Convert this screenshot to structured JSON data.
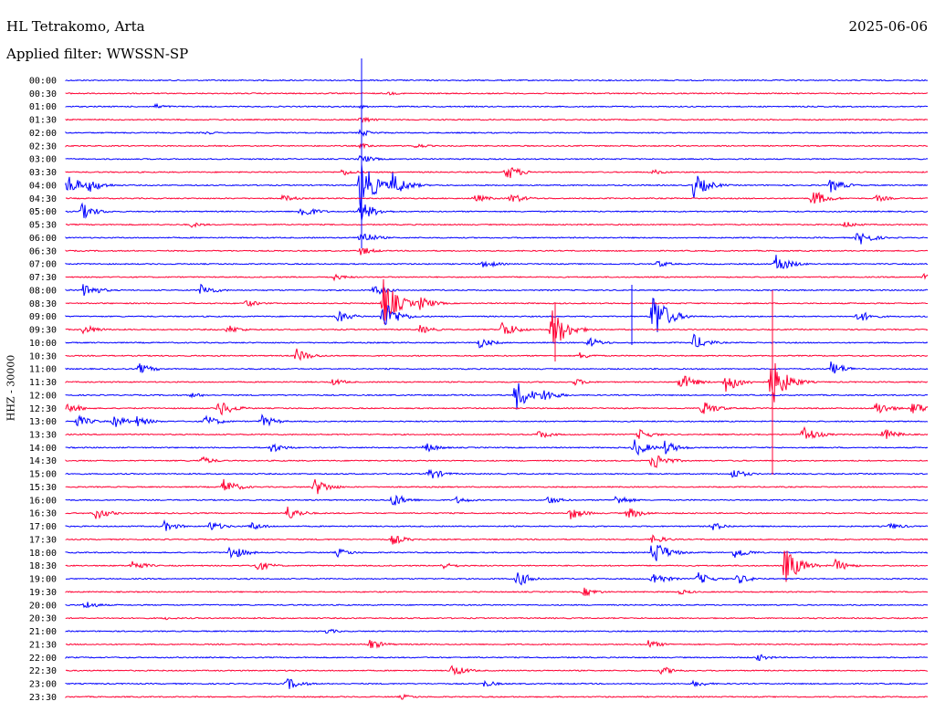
{
  "header": {
    "station": "HL Tetrakomo, Arta",
    "date": "2025-06-06",
    "filter": "Applied filter: WWSSN-SP"
  },
  "axis_label": "HHZ - 30000",
  "colors": {
    "blue": "#0000ff",
    "red": "#ff0033"
  },
  "rows": [
    {
      "time": "00:00",
      "color": "blue",
      "events": []
    },
    {
      "time": "00:30",
      "color": "red",
      "events": [
        [
          425,
          2
        ]
      ]
    },
    {
      "time": "01:00",
      "color": "blue",
      "events": [
        [
          170,
          3
        ],
        [
          395,
          2
        ]
      ]
    },
    {
      "time": "01:30",
      "color": "red",
      "events": [
        [
          395,
          4
        ]
      ]
    },
    {
      "time": "02:00",
      "color": "blue",
      "events": [
        [
          225,
          2
        ],
        [
          395,
          4
        ]
      ]
    },
    {
      "time": "02:30",
      "color": "red",
      "events": [
        [
          455,
          3
        ],
        [
          395,
          3
        ]
      ]
    },
    {
      "time": "03:00",
      "color": "blue",
      "events": [
        [
          395,
          5
        ]
      ]
    },
    {
      "time": "03:30",
      "color": "red",
      "events": [
        [
          375,
          4
        ],
        [
          555,
          9
        ],
        [
          715,
          3
        ]
      ]
    },
    {
      "time": "04:00",
      "color": "blue",
      "events": [
        [
          75,
          12
        ],
        [
          98,
          8
        ],
        [
          395,
          30
        ],
        [
          430,
          14
        ],
        [
          760,
          14
        ],
        [
          910,
          8
        ]
      ]
    },
    {
      "time": "04:30",
      "color": "red",
      "events": [
        [
          310,
          4
        ],
        [
          520,
          5
        ],
        [
          560,
          6
        ],
        [
          890,
          10
        ],
        [
          960,
          4
        ]
      ]
    },
    {
      "time": "05:00",
      "color": "blue",
      "events": [
        [
          90,
          9
        ],
        [
          330,
          8
        ],
        [
          395,
          12
        ]
      ]
    },
    {
      "time": "05:30",
      "color": "red",
      "events": [
        [
          210,
          3
        ],
        [
          925,
          4
        ]
      ]
    },
    {
      "time": "06:00",
      "color": "blue",
      "events": [
        [
          940,
          9
        ],
        [
          395,
          8
        ]
      ]
    },
    {
      "time": "06:30",
      "color": "red",
      "events": [
        [
          395,
          5
        ]
      ]
    },
    {
      "time": "07:00",
      "color": "blue",
      "events": [
        [
          530,
          5
        ],
        [
          720,
          4
        ],
        [
          850,
          11
        ]
      ]
    },
    {
      "time": "07:30",
      "color": "red",
      "events": [
        [
          365,
          4
        ],
        [
          1012,
          4
        ]
      ]
    },
    {
      "time": "08:00",
      "color": "blue",
      "events": [
        [
          92,
          9
        ],
        [
          220,
          7
        ],
        [
          410,
          6
        ]
      ]
    },
    {
      "time": "08:30",
      "color": "red",
      "events": [
        [
          270,
          4
        ],
        [
          420,
          28
        ],
        [
          460,
          8
        ]
      ]
    },
    {
      "time": "09:00",
      "color": "blue",
      "events": [
        [
          370,
          7
        ],
        [
          420,
          18
        ],
        [
          715,
          30
        ],
        [
          940,
          7
        ]
      ]
    },
    {
      "time": "09:30",
      "color": "red",
      "events": [
        [
          92,
          6
        ],
        [
          250,
          5
        ],
        [
          550,
          10
        ],
        [
          605,
          24
        ],
        [
          460,
          5
        ]
      ]
    },
    {
      "time": "10:00",
      "color": "blue",
      "events": [
        [
          525,
          6
        ],
        [
          645,
          6
        ],
        [
          760,
          9
        ]
      ]
    },
    {
      "time": "10:30",
      "color": "red",
      "events": [
        [
          325,
          8
        ],
        [
          635,
          4
        ]
      ]
    },
    {
      "time": "11:00",
      "color": "blue",
      "events": [
        [
          153,
          6
        ],
        [
          910,
          9
        ]
      ]
    },
    {
      "time": "11:30",
      "color": "red",
      "events": [
        [
          365,
          4
        ],
        [
          630,
          4
        ],
        [
          745,
          10
        ],
        [
          795,
          12
        ],
        [
          845,
          28
        ]
      ]
    },
    {
      "time": "12:00",
      "color": "blue",
      "events": [
        [
          565,
          18
        ],
        [
          595,
          8
        ],
        [
          210,
          3
        ]
      ]
    },
    {
      "time": "12:30",
      "color": "red",
      "events": [
        [
          75,
          6
        ],
        [
          240,
          10
        ],
        [
          770,
          9
        ],
        [
          960,
          8
        ],
        [
          1000,
          8
        ]
      ]
    },
    {
      "time": "13:00",
      "color": "blue",
      "events": [
        [
          85,
          7
        ],
        [
          125,
          7
        ],
        [
          150,
          6
        ],
        [
          225,
          7
        ],
        [
          287,
          7
        ]
      ]
    },
    {
      "time": "13:30",
      "color": "red",
      "events": [
        [
          590,
          5
        ],
        [
          700,
          6
        ],
        [
          880,
          10
        ],
        [
          968,
          7
        ]
      ]
    },
    {
      "time": "14:00",
      "color": "blue",
      "events": [
        [
          297,
          6
        ],
        [
          465,
          6
        ],
        [
          695,
          10
        ],
        [
          728,
          8
        ]
      ]
    },
    {
      "time": "14:30",
      "color": "red",
      "events": [
        [
          220,
          5
        ],
        [
          715,
          11
        ]
      ]
    },
    {
      "time": "15:00",
      "color": "blue",
      "events": [
        [
          470,
          7
        ],
        [
          802,
          6
        ]
      ]
    },
    {
      "time": "15:30",
      "color": "red",
      "events": [
        [
          245,
          9
        ],
        [
          345,
          10
        ]
      ]
    },
    {
      "time": "16:00",
      "color": "blue",
      "events": [
        [
          430,
          8
        ],
        [
          500,
          4
        ],
        [
          600,
          5
        ],
        [
          675,
          6
        ]
      ]
    },
    {
      "time": "16:30",
      "color": "red",
      "events": [
        [
          105,
          7
        ],
        [
          315,
          8
        ],
        [
          625,
          7
        ],
        [
          688,
          7
        ]
      ]
    },
    {
      "time": "17:00",
      "color": "blue",
      "events": [
        [
          180,
          6
        ],
        [
          230,
          6
        ],
        [
          275,
          5
        ],
        [
          780,
          5
        ],
        [
          975,
          4
        ]
      ]
    },
    {
      "time": "17:30",
      "color": "red",
      "events": [
        [
          430,
          6
        ],
        [
          715,
          5
        ]
      ]
    },
    {
      "time": "18:00",
      "color": "blue",
      "events": [
        [
          252,
          9
        ],
        [
          370,
          5
        ],
        [
          715,
          16
        ],
        [
          805,
          7
        ]
      ]
    },
    {
      "time": "18:30",
      "color": "red",
      "events": [
        [
          145,
          6
        ],
        [
          280,
          7
        ],
        [
          485,
          4
        ],
        [
          860,
          22
        ],
        [
          915,
          7
        ]
      ]
    },
    {
      "time": "19:00",
      "color": "blue",
      "events": [
        [
          567,
          9
        ],
        [
          715,
          8
        ],
        [
          765,
          7
        ],
        [
          808,
          6
        ]
      ]
    },
    {
      "time": "19:30",
      "color": "red",
      "events": [
        [
          640,
          5
        ],
        [
          745,
          3
        ]
      ]
    },
    {
      "time": "20:00",
      "color": "blue",
      "events": [
        [
          93,
          5
        ]
      ]
    },
    {
      "time": "20:30",
      "color": "red",
      "events": [
        [
          180,
          2
        ]
      ]
    },
    {
      "time": "21:00",
      "color": "blue",
      "events": [
        [
          358,
          3
        ]
      ]
    },
    {
      "time": "21:30",
      "color": "red",
      "events": [
        [
          405,
          6
        ],
        [
          710,
          5
        ]
      ]
    },
    {
      "time": "22:00",
      "color": "blue",
      "events": [
        [
          830,
          4
        ]
      ]
    },
    {
      "time": "22:30",
      "color": "red",
      "events": [
        [
          495,
          7
        ],
        [
          725,
          5
        ]
      ]
    },
    {
      "time": "23:00",
      "color": "blue",
      "events": [
        [
          315,
          7
        ],
        [
          530,
          4
        ],
        [
          760,
          4
        ]
      ]
    },
    {
      "time": "23:30",
      "color": "red",
      "events": [
        [
          440,
          3
        ]
      ]
    }
  ]
}
